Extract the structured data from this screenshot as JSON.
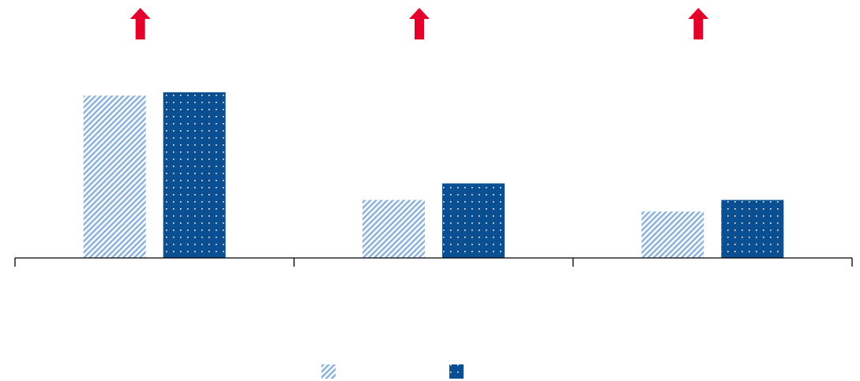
{
  "chart_data": {
    "type": "bar",
    "categories": [
      "",
      "",
      ""
    ],
    "series": [
      {
        "values": [
          9.8,
          3.5,
          2.8
        ],
        "color": "#8fb4dc",
        "pattern": "diagonal-hatch"
      },
      {
        "values": [
          10.0,
          4.5,
          3.5
        ],
        "color": "#0a4f91",
        "pattern": "dots"
      }
    ],
    "indicators": [
      {
        "icon": "arrow-up-icon",
        "color": "#e4002b"
      },
      {
        "icon": "arrow-up-icon",
        "color": "#e4002b"
      },
      {
        "icon": "arrow-up-icon",
        "color": "#e4002b"
      }
    ],
    "ylim": [
      0,
      15
    ],
    "grid": false,
    "legend": "bottom-center",
    "title": "",
    "xlabel": "",
    "ylabel": ""
  }
}
